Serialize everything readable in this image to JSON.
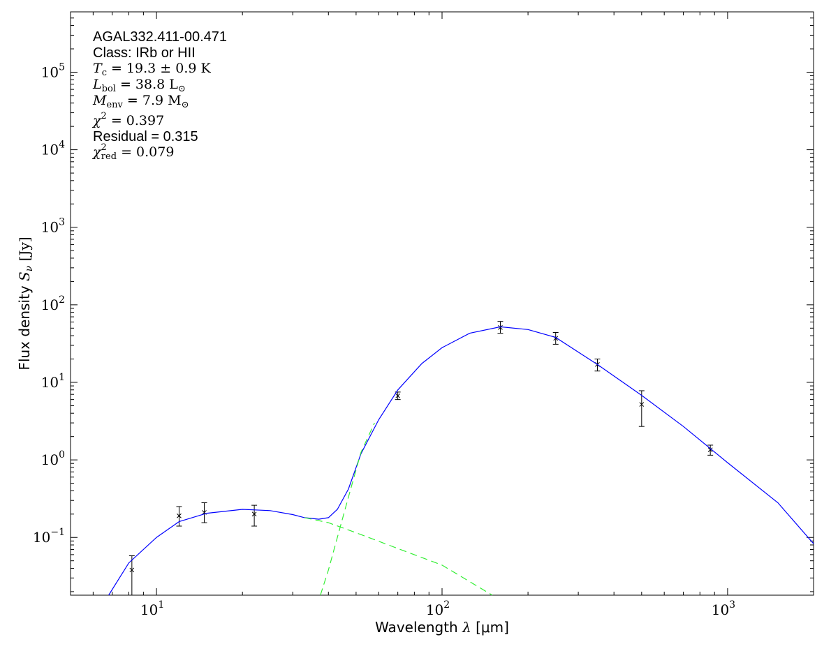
{
  "chart_data": {
    "type": "line",
    "xlabel_prefix": "Wavelength ",
    "xlabel_symbol": "λ",
    "xlabel_unit": " [μm]",
    "ylabel_prefix": "Flux density ",
    "ylabel_symbol": "S",
    "ylabel_sub": "ν",
    "ylabel_unit": " [Jy]",
    "x_scale": "log",
    "y_scale": "log",
    "xlim": [
      5.0,
      2000.0
    ],
    "ylim": [
      0.018,
      600000.0
    ],
    "x_ticks": [
      {
        "base": "10",
        "exp": "1",
        "value": 10
      },
      {
        "base": "10",
        "exp": "2",
        "value": 100
      },
      {
        "base": "10",
        "exp": "3",
        "value": 1000
      }
    ],
    "y_ticks": [
      {
        "base": "10",
        "exp": "−1",
        "value": 0.1
      },
      {
        "base": "10",
        "exp": "0",
        "value": 1
      },
      {
        "base": "10",
        "exp": "1",
        "value": 10
      },
      {
        "base": "10",
        "exp": "2",
        "value": 100
      },
      {
        "base": "10",
        "exp": "3",
        "value": 1000
      },
      {
        "base": "10",
        "exp": "4",
        "value": 10000
      },
      {
        "base": "10",
        "exp": "5",
        "value": 100000
      }
    ],
    "grid": false,
    "annotations": {
      "source_name": "AGAL332.411-00.471",
      "class_text": "Class: IRb or HII",
      "tc": {
        "symbol": "T",
        "sub": "c",
        "text": " = 19.3 ± 0.9 K"
      },
      "lbol": {
        "symbol": "L",
        "sub": "bol",
        "text": " = 38.8 L",
        "tail_sub": "⊙"
      },
      "menv": {
        "symbol": "M",
        "sub": "env",
        "text": " = 7.9 M",
        "tail_sub": "⊙"
      },
      "chi2": {
        "symbol": "χ",
        "sup": "2",
        "text": " = 0.397"
      },
      "residual_text": "Residual = 0.315",
      "chi2red": {
        "symbol": "χ",
        "sup": "2",
        "sub": "red",
        "text": " = 0.079"
      }
    },
    "series": [
      {
        "style": "errorbar",
        "color": "#000000",
        "points": [
          {
            "x": 8.2,
            "y": 0.038,
            "ylo": 0.018,
            "yhi": 0.058
          },
          {
            "x": 12.0,
            "y": 0.19,
            "ylo": 0.14,
            "yhi": 0.25
          },
          {
            "x": 14.7,
            "y": 0.21,
            "ylo": 0.155,
            "yhi": 0.28
          },
          {
            "x": 22.0,
            "y": 0.2,
            "ylo": 0.14,
            "yhi": 0.26
          },
          {
            "x": 70.0,
            "y": 6.7,
            "ylo": 6.0,
            "yhi": 7.5
          },
          {
            "x": 160.0,
            "y": 51.0,
            "ylo": 43.0,
            "yhi": 61.0
          },
          {
            "x": 250.0,
            "y": 37.0,
            "ylo": 31.0,
            "yhi": 44.0
          },
          {
            "x": 350.0,
            "y": 17.0,
            "ylo": 14.0,
            "yhi": 20.0
          },
          {
            "x": 500.0,
            "y": 5.2,
            "ylo": 2.7,
            "yhi": 7.8
          },
          {
            "x": 870.0,
            "y": 1.35,
            "ylo": 1.15,
            "yhi": 1.55
          }
        ]
      },
      {
        "style": "solid",
        "color": "#0000ff",
        "points": [
          [
            6.8,
            0.018
          ],
          [
            8.0,
            0.047
          ],
          [
            10.0,
            0.1
          ],
          [
            12.0,
            0.16
          ],
          [
            15.0,
            0.205
          ],
          [
            20.0,
            0.23
          ],
          [
            25.0,
            0.222
          ],
          [
            30.0,
            0.197
          ],
          [
            33.0,
            0.18
          ],
          [
            37.0,
            0.172
          ],
          [
            40.0,
            0.18
          ],
          [
            43.0,
            0.23
          ],
          [
            47.0,
            0.42
          ],
          [
            52.0,
            1.2
          ],
          [
            60.0,
            3.3
          ],
          [
            70.0,
            8.0
          ],
          [
            85.0,
            17.5
          ],
          [
            100.0,
            28.0
          ],
          [
            125.0,
            43.0
          ],
          [
            160.0,
            52.0
          ],
          [
            200.0,
            48.0
          ],
          [
            250.0,
            38.0
          ],
          [
            350.0,
            17.0
          ],
          [
            500.0,
            6.8
          ],
          [
            700.0,
            2.7
          ],
          [
            1000.0,
            0.92
          ],
          [
            1500.0,
            0.28
          ],
          [
            2000.0,
            0.083
          ]
        ]
      },
      {
        "style": "dashed",
        "color": "#33ee33",
        "points": [
          [
            33.0,
            0.18
          ],
          [
            40.0,
            0.155
          ],
          [
            50.0,
            0.115
          ],
          [
            70.0,
            0.072
          ],
          [
            100.0,
            0.044
          ],
          [
            150.0,
            0.018
          ]
        ]
      },
      {
        "style": "dashed",
        "color": "#33ee33",
        "points": [
          [
            37.5,
            0.018
          ],
          [
            40.0,
            0.038
          ],
          [
            43.0,
            0.1
          ],
          [
            47.0,
            0.33
          ],
          [
            52.0,
            1.25
          ],
          [
            58.0,
            3.0
          ]
        ]
      }
    ]
  }
}
